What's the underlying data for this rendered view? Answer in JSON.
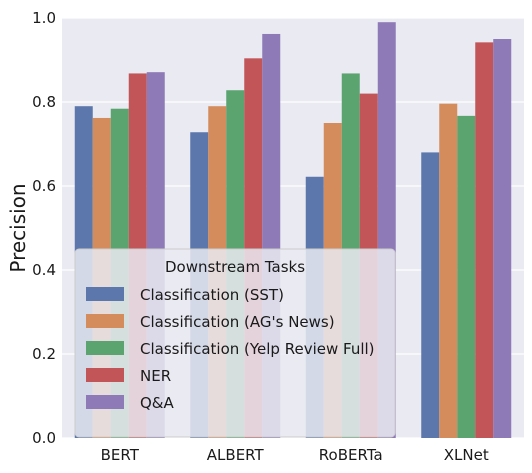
{
  "chart_data": {
    "type": "bar",
    "title": "",
    "xlabel": "",
    "ylabel": "Precision",
    "ylim": [
      0.0,
      1.0
    ],
    "yticks": [
      "0.0",
      "0.2",
      "0.4",
      "0.6",
      "0.8",
      "1.0"
    ],
    "categories": [
      "BERT",
      "ALBERT",
      "RoBERTa",
      "XLNet"
    ],
    "grid": true,
    "legend": {
      "title": "Downstream Tasks",
      "placement": "lower-left"
    },
    "series": [
      {
        "name": "Classification (SST)",
        "color": "#5b77ab",
        "values": [
          0.79,
          0.728,
          0.622,
          0.68
        ]
      },
      {
        "name": "Classification (AG's News)",
        "color": "#d58c5d",
        "values": [
          0.762,
          0.79,
          0.75,
          0.796
        ]
      },
      {
        "name": "Classification (Yelp Review Full)",
        "color": "#5ba36f",
        "values": [
          0.784,
          0.828,
          0.868,
          0.767
        ]
      },
      {
        "name": "NER",
        "color": "#c25558",
        "values": [
          0.868,
          0.904,
          0.82,
          0.942
        ]
      },
      {
        "name": "Q&A",
        "color": "#8d7ab6",
        "values": [
          0.871,
          0.962,
          0.99,
          0.95
        ]
      }
    ]
  }
}
